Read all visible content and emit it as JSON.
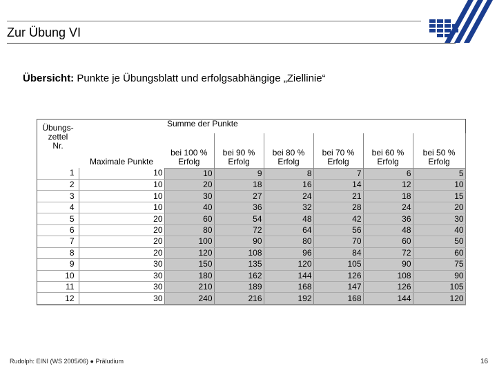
{
  "header": {
    "title": "Zur Übung VI"
  },
  "subtitle": {
    "bold": "Übersicht:",
    "text": " Punkte je Übungsblatt und erfolgsabhängige „Ziellinie“"
  },
  "table": {
    "summe_label": "Summe der Punkte",
    "col_nr_lines": [
      "Übungs-",
      "zettel",
      "Nr."
    ],
    "col_max": "Maximale Punkte",
    "pct_headers": [
      {
        "top": "bei 100 %",
        "bottom": "Erfolg"
      },
      {
        "top": "bei 90 %",
        "bottom": "Erfolg"
      },
      {
        "top": "bei 80 %",
        "bottom": "Erfolg"
      },
      {
        "top": "bei 70 %",
        "bottom": "Erfolg"
      },
      {
        "top": "bei 60 %",
        "bottom": "Erfolg"
      },
      {
        "top": "bei 50 %",
        "bottom": "Erfolg"
      }
    ],
    "rows": [
      [
        "1",
        "10",
        "10",
        "9",
        "8",
        "7",
        "6",
        "5"
      ],
      [
        "2",
        "10",
        "20",
        "18",
        "16",
        "14",
        "12",
        "10"
      ],
      [
        "3",
        "10",
        "30",
        "27",
        "24",
        "21",
        "18",
        "15"
      ],
      [
        "4",
        "10",
        "40",
        "36",
        "32",
        "28",
        "24",
        "20"
      ],
      [
        "5",
        "20",
        "60",
        "54",
        "48",
        "42",
        "36",
        "30"
      ],
      [
        "6",
        "20",
        "80",
        "72",
        "64",
        "56",
        "48",
        "40"
      ],
      [
        "7",
        "20",
        "100",
        "90",
        "80",
        "70",
        "60",
        "50"
      ],
      [
        "8",
        "20",
        "120",
        "108",
        "96",
        "84",
        "72",
        "60"
      ],
      [
        "9",
        "30",
        "150",
        "135",
        "120",
        "105",
        "90",
        "75"
      ],
      [
        "10",
        "30",
        "180",
        "162",
        "144",
        "126",
        "108",
        "90"
      ],
      [
        "11",
        "30",
        "210",
        "189",
        "168",
        "147",
        "126",
        "105"
      ],
      [
        "12",
        "30",
        "240",
        "216",
        "192",
        "168",
        "144",
        "120"
      ]
    ]
  },
  "footer": {
    "left": "Rudolph: EINI (WS 2005/06)  ●  Präludium",
    "page": "16"
  },
  "colors": {
    "shade": "#c8c8c8",
    "logo": "#1a3d8f"
  }
}
